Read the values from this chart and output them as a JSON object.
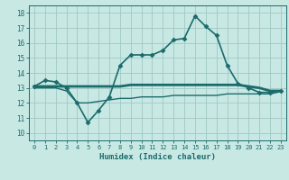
{
  "title": "",
  "xlabel": "Humidex (Indice chaleur)",
  "ylabel": "",
  "bg_color": "#c8e8e4",
  "line_color": "#1a6b6b",
  "grid_color": "#a0c8c4",
  "xlim": [
    -0.5,
    23.5
  ],
  "ylim": [
    9.5,
    18.5
  ],
  "yticks": [
    10,
    11,
    12,
    13,
    14,
    15,
    16,
    17,
    18
  ],
  "xticks": [
    0,
    1,
    2,
    3,
    4,
    5,
    6,
    7,
    8,
    9,
    10,
    11,
    12,
    13,
    14,
    15,
    16,
    17,
    18,
    19,
    20,
    21,
    22,
    23
  ],
  "series": [
    {
      "x": [
        0,
        1,
        2,
        3,
        4,
        5,
        6,
        7,
        8,
        9,
        10,
        11,
        12,
        13,
        14,
        15,
        16,
        17,
        18,
        19,
        20,
        21,
        22,
        23
      ],
      "y": [
        13.1,
        13.5,
        13.4,
        13.0,
        12.0,
        10.7,
        11.5,
        12.4,
        14.5,
        15.2,
        15.2,
        15.2,
        15.5,
        16.2,
        16.3,
        17.8,
        17.1,
        16.5,
        14.5,
        13.3,
        13.0,
        12.7,
        12.7,
        12.8
      ],
      "marker": "D",
      "markersize": 2.5,
      "linewidth": 1.2,
      "color": "#1a6b6b"
    },
    {
      "x": [
        0,
        1,
        2,
        3,
        4,
        5,
        6,
        7,
        8,
        9,
        10,
        11,
        12,
        13,
        14,
        15,
        16,
        17,
        18,
        19,
        20,
        21,
        22,
        23
      ],
      "y": [
        13.1,
        13.1,
        13.1,
        13.1,
        13.1,
        13.1,
        13.1,
        13.1,
        13.1,
        13.2,
        13.2,
        13.2,
        13.2,
        13.2,
        13.2,
        13.2,
        13.2,
        13.2,
        13.2,
        13.2,
        13.1,
        13.0,
        12.8,
        12.8
      ],
      "marker": null,
      "markersize": 0,
      "linewidth": 2.0,
      "color": "#1a6b6b"
    },
    {
      "x": [
        0,
        1,
        2,
        3,
        4,
        5,
        6,
        7,
        8,
        9,
        10,
        11,
        12,
        13,
        14,
        15,
        16,
        17,
        18,
        19,
        20,
        21,
        22,
        23
      ],
      "y": [
        13.0,
        13.0,
        13.0,
        12.8,
        12.0,
        12.0,
        12.1,
        12.2,
        12.3,
        12.3,
        12.4,
        12.4,
        12.4,
        12.5,
        12.5,
        12.5,
        12.5,
        12.5,
        12.6,
        12.6,
        12.6,
        12.6,
        12.6,
        12.75
      ],
      "marker": null,
      "markersize": 0,
      "linewidth": 1.0,
      "color": "#1a6b6b"
    }
  ]
}
